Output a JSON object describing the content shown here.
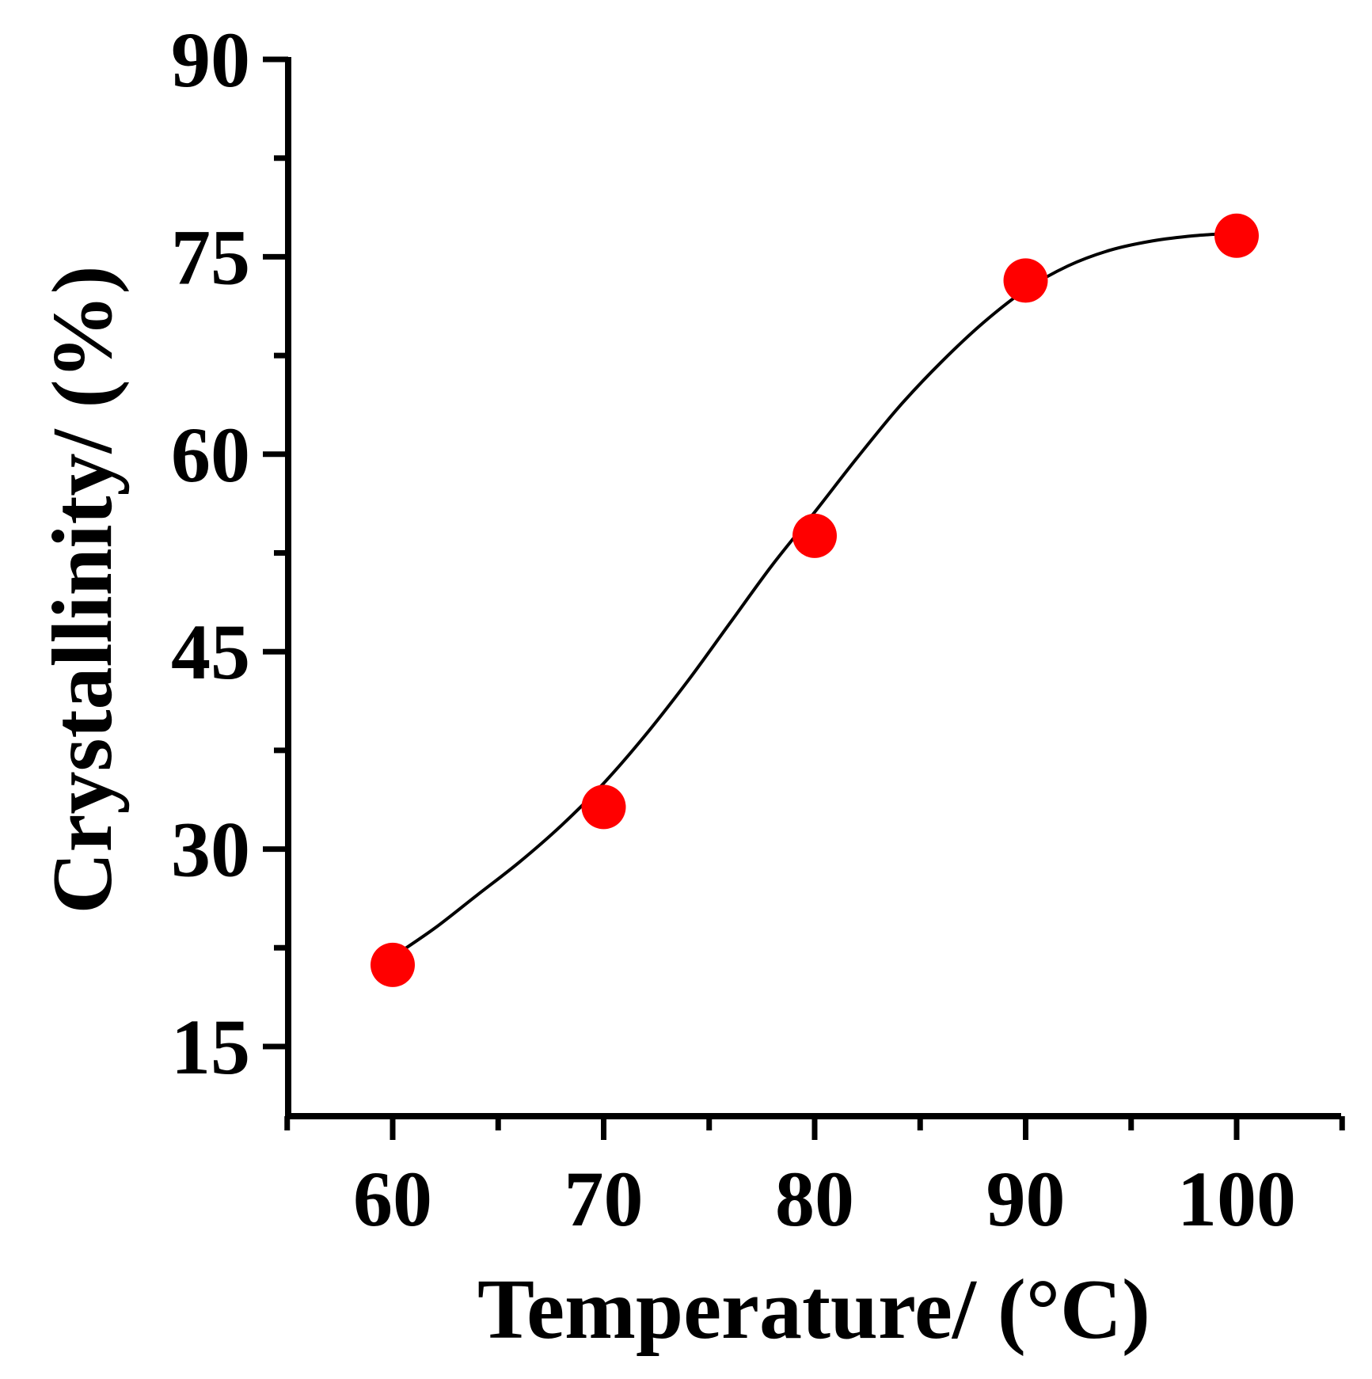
{
  "chart_data": {
    "type": "scatter",
    "title": "",
    "xlabel": "Temperature/ (°C)",
    "ylabel": "Crystallinity/ (%)",
    "xlim": [
      55,
      105
    ],
    "ylim": [
      10,
      90
    ],
    "xticks": [
      60,
      70,
      80,
      90,
      100
    ],
    "yticks": [
      15,
      30,
      45,
      60,
      75,
      90
    ],
    "xtick_labels": [
      "60",
      "70",
      "80",
      "90",
      "100"
    ],
    "ytick_labels": [
      "15",
      "30",
      "45",
      "60",
      "75",
      "90"
    ],
    "grid": false,
    "series": [
      {
        "name": "Crystallinity",
        "marker": "circle",
        "color": "#ff0000",
        "x": [
          60,
          70,
          80,
          90,
          100
        ],
        "y": [
          21.2,
          33.2,
          53.8,
          73.2,
          76.6
        ]
      }
    ],
    "fit_curve": {
      "color": "#000000",
      "x": [
        60,
        62,
        64,
        66,
        68,
        70,
        72,
        74,
        76,
        78,
        80,
        82,
        84,
        86,
        88,
        90,
        92,
        94,
        96,
        98,
        100
      ],
      "y": [
        21.8,
        24.0,
        26.5,
        29.0,
        31.8,
        35.0,
        38.7,
        42.8,
        47.2,
        51.6,
        55.6,
        59.7,
        63.6,
        67.0,
        70.0,
        72.5,
        74.3,
        75.5,
        76.2,
        76.6,
        76.8
      ]
    }
  }
}
